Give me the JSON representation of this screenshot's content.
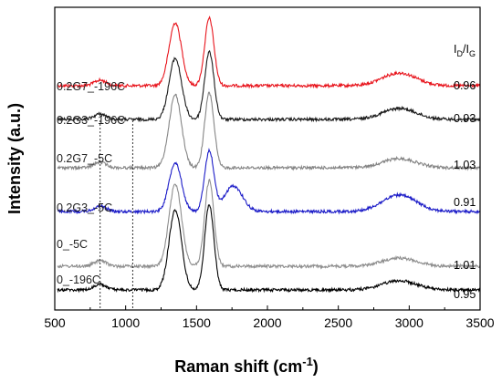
{
  "chart_data": {
    "type": "line",
    "title": "",
    "xlabel": "Raman shift (cm",
    "xlabel_sup": "-1",
    "xlabel_close": ")",
    "ylabel": "Intensity (a.u.)",
    "xlim": [
      500,
      3500
    ],
    "xticks": [
      "500",
      "1000",
      "1500",
      "2000",
      "2500",
      "3000",
      "3500"
    ],
    "grid": false,
    "ratio_header": {
      "base": "I",
      "sub1": "D",
      "slash": "/I",
      "sub2": "G"
    },
    "reference_lines": [
      820,
      1050
    ],
    "series": [
      {
        "name": "0.2G7_-196C",
        "color": "#e8141c",
        "ratio": "0.96",
        "baseline": 94,
        "d_peak": 69,
        "g_peak": 74,
        "d2_peak": 14,
        "shoulder": 0
      },
      {
        "name": "0.2G3_-196C",
        "color": "#1a1a1a",
        "ratio": "0.93",
        "baseline": 131,
        "d_peak": 67,
        "g_peak": 74,
        "d2_peak": 12,
        "shoulder": 0
      },
      {
        "name": "0.2G7_-5C",
        "color": "#858585",
        "ratio": "1.03",
        "baseline": 184,
        "d_peak": 80,
        "g_peak": 82,
        "d2_peak": 10,
        "shoulder": 0
      },
      {
        "name": "0.2G3_-5C",
        "color": "#1c1cc8",
        "ratio": "0.91",
        "baseline": 232,
        "d_peak": 54,
        "g_peak": 66,
        "d2_peak": 18,
        "shoulder": 28
      },
      {
        "name": "0_-5C",
        "color": "#8e8e8e",
        "ratio": "1.01",
        "baseline": 292,
        "d_peak": 90,
        "g_peak": 94,
        "d2_peak": 9,
        "shoulder": 0
      },
      {
        "name": "0_-196C",
        "color": "#000000",
        "ratio": "0.95",
        "baseline": 318,
        "d_peak": 88,
        "g_peak": 94,
        "d2_peak": 10,
        "shoulder": 0
      }
    ]
  }
}
